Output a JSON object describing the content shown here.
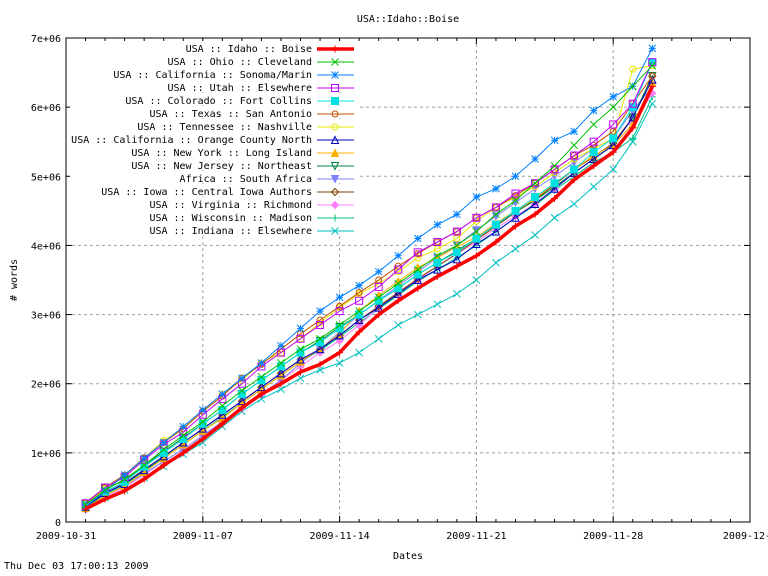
{
  "chart_data": {
    "type": "line",
    "title": "USA::Idaho::Boise",
    "xlabel": "Dates",
    "ylabel": "# words",
    "x_ticks": [
      "2009-10-31",
      "2009-11-07",
      "2009-11-14",
      "2009-11-21",
      "2009-11-28",
      "2009-12-0"
    ],
    "x_tick_days": [
      0,
      7,
      14,
      21,
      28,
      35
    ],
    "xlim_days": [
      0,
      35
    ],
    "y_ticks": [
      "0",
      "1e+06",
      "2e+06",
      "3e+06",
      "4e+06",
      "5e+06",
      "6e+06",
      "7e+06"
    ],
    "y_tick_values": [
      0,
      1000000,
      2000000,
      3000000,
      4000000,
      5000000,
      6000000,
      7000000
    ],
    "ylim": [
      0,
      7000000
    ],
    "grid": true,
    "legend_position": "top-left",
    "x_days": [
      1,
      2,
      3,
      4,
      5,
      6,
      7,
      8,
      9,
      10,
      11,
      12,
      13,
      14,
      15,
      16,
      17,
      18,
      19,
      20,
      21,
      22,
      23,
      24,
      25,
      26,
      27,
      28,
      29,
      30
    ],
    "series": [
      {
        "name": "USA :: Idaho :: Boise",
        "color": "#ff0000",
        "marker": "plus",
        "thick": true,
        "values": [
          0.19,
          0.33,
          0.45,
          0.62,
          0.82,
          1.0,
          1.2,
          1.42,
          1.65,
          1.85,
          2.0,
          2.17,
          2.28,
          2.45,
          2.75,
          3.0,
          3.2,
          3.38,
          3.55,
          3.7,
          3.85,
          4.05,
          4.28,
          4.45,
          4.68,
          4.95,
          5.15,
          5.35,
          5.7,
          6.3
        ]
      },
      {
        "name": "USA :: Ohio :: Cleveland",
        "color": "#00c000",
        "marker": "x",
        "values": [
          0.25,
          0.46,
          0.62,
          0.82,
          1.05,
          1.25,
          1.45,
          1.68,
          1.9,
          2.1,
          2.3,
          2.5,
          2.65,
          2.85,
          3.05,
          3.25,
          3.45,
          3.65,
          3.85,
          4.0,
          4.2,
          4.45,
          4.65,
          4.9,
          5.15,
          5.45,
          5.75,
          6.0,
          6.3,
          6.6
        ]
      },
      {
        "name": "USA :: California :: Sonoma/Marin",
        "color": "#0080ff",
        "marker": "star",
        "values": [
          0.22,
          0.45,
          0.68,
          0.92,
          1.15,
          1.38,
          1.62,
          1.85,
          2.08,
          2.3,
          2.55,
          2.8,
          3.05,
          3.25,
          3.42,
          3.62,
          3.85,
          4.1,
          4.3,
          4.45,
          4.7,
          4.82,
          5.0,
          5.25,
          5.52,
          5.65,
          5.95,
          6.15,
          6.3,
          6.85
        ]
      },
      {
        "name": "USA :: Utah :: Elsewhere",
        "color": "#c000ff",
        "marker": "box",
        "values": [
          0.27,
          0.5,
          0.65,
          0.9,
          1.12,
          1.3,
          1.55,
          1.78,
          2.0,
          2.25,
          2.45,
          2.65,
          2.85,
          3.05,
          3.2,
          3.4,
          3.65,
          3.9,
          4.05,
          4.2,
          4.4,
          4.55,
          4.75,
          4.9,
          5.1,
          5.3,
          5.5,
          5.75,
          6.05,
          6.65
        ]
      },
      {
        "name": "USA :: Colorado :: Fort Collins",
        "color": "#00e0e0",
        "marker": "filled-box",
        "values": [
          0.24,
          0.44,
          0.58,
          0.8,
          1.0,
          1.2,
          1.42,
          1.62,
          1.85,
          2.05,
          2.25,
          2.45,
          2.6,
          2.8,
          3.0,
          3.2,
          3.38,
          3.58,
          3.75,
          3.9,
          4.1,
          4.3,
          4.5,
          4.7,
          4.9,
          5.1,
          5.35,
          5.55,
          6.0,
          6.65
        ]
      },
      {
        "name": "USA :: Texas :: San Antonio",
        "color": "#c05000",
        "marker": "circle",
        "values": [
          0.28,
          0.5,
          0.68,
          0.93,
          1.15,
          1.35,
          1.6,
          1.82,
          2.08,
          2.28,
          2.5,
          2.72,
          2.92,
          3.12,
          3.32,
          3.5,
          3.7,
          3.88,
          4.05,
          4.2,
          4.4,
          4.55,
          4.72,
          4.9,
          5.1,
          5.3,
          5.45,
          5.65,
          6.05,
          6.45
        ]
      },
      {
        "name": "USA :: Tennessee :: Nashville",
        "color": "#e8e800",
        "marker": "circle",
        "values": [
          0.26,
          0.48,
          0.66,
          0.92,
          1.18,
          1.35,
          1.6,
          1.85,
          2.05,
          2.3,
          2.45,
          2.65,
          2.88,
          3.1,
          3.3,
          3.45,
          3.62,
          3.82,
          3.95,
          4.1,
          4.35,
          4.55,
          4.7,
          4.85,
          5.05,
          5.25,
          5.4,
          5.55,
          6.55,
          6.6
        ]
      },
      {
        "name": "USA :: California :: Orange County North",
        "color": "#0000c0",
        "marker": "triangle",
        "values": [
          0.22,
          0.42,
          0.55,
          0.75,
          0.95,
          1.15,
          1.35,
          1.55,
          1.75,
          1.95,
          2.15,
          2.35,
          2.5,
          2.7,
          2.92,
          3.1,
          3.3,
          3.5,
          3.65,
          3.8,
          4.02,
          4.2,
          4.4,
          4.6,
          4.82,
          5.05,
          5.25,
          5.45,
          5.85,
          6.4
        ]
      },
      {
        "name": "USA :: New York :: Long Island",
        "color": "#ffb000",
        "marker": "filled-triangle",
        "values": [
          0.2,
          0.38,
          0.52,
          0.72,
          0.92,
          1.12,
          1.32,
          1.5,
          1.72,
          1.92,
          2.12,
          2.32,
          2.5,
          2.72,
          3.05,
          3.28,
          3.48,
          3.68,
          3.82,
          3.98,
          4.12,
          4.32,
          4.5,
          4.68,
          4.9,
          5.1,
          5.3,
          5.45,
          5.75,
          6.35
        ]
      },
      {
        "name": "USA :: New Jersey :: Northeast",
        "color": "#008040",
        "marker": "inverted-triangle",
        "values": [
          0.26,
          0.48,
          0.6,
          0.82,
          1.02,
          1.22,
          1.42,
          1.62,
          1.85,
          2.05,
          2.25,
          2.45,
          2.62,
          2.82,
          3.0,
          3.2,
          3.38,
          3.58,
          3.75,
          3.92,
          4.1,
          4.3,
          4.48,
          4.65,
          4.85,
          5.05,
          5.25,
          5.45,
          5.85,
          6.45
        ]
      },
      {
        "name": "Africa :: South Africa",
        "color": "#8080ff",
        "marker": "filled-inverted-triangle",
        "values": [
          0.18,
          0.38,
          0.52,
          0.7,
          0.88,
          1.05,
          1.25,
          1.45,
          1.65,
          1.85,
          2.05,
          2.3,
          2.5,
          2.75,
          3.0,
          3.2,
          3.42,
          3.62,
          3.82,
          4.0,
          4.22,
          4.42,
          4.62,
          4.82,
          5.0,
          5.2,
          5.4,
          5.55,
          5.95,
          6.3
        ]
      },
      {
        "name": "USA :: Iowa :: Central Iowa Authors",
        "color": "#804000",
        "marker": "diamond",
        "values": [
          0.23,
          0.42,
          0.56,
          0.76,
          0.95,
          1.15,
          1.35,
          1.55,
          1.75,
          1.95,
          2.15,
          2.35,
          2.5,
          2.7,
          2.92,
          3.12,
          3.32,
          3.52,
          3.7,
          3.88,
          4.08,
          4.28,
          4.48,
          4.66,
          4.88,
          5.1,
          5.28,
          5.48,
          5.85,
          6.45
        ]
      },
      {
        "name": "USA :: Virginia :: Richmond",
        "color": "#ff80ff",
        "marker": "filled-diamond",
        "values": [
          0.18,
          0.36,
          0.5,
          0.68,
          0.88,
          1.05,
          1.25,
          1.45,
          1.65,
          1.85,
          2.05,
          2.25,
          2.45,
          2.62,
          2.85,
          3.1,
          3.3,
          3.5,
          3.7,
          3.88,
          4.05,
          4.25,
          4.42,
          4.6,
          4.82,
          5.05,
          5.25,
          5.45,
          5.75,
          6.2
        ]
      },
      {
        "name": "USA :: Wisconsin :: Madison",
        "color": "#00c080",
        "marker": "plus",
        "values": [
          0.21,
          0.4,
          0.54,
          0.74,
          0.93,
          1.12,
          1.32,
          1.52,
          1.72,
          1.92,
          2.12,
          2.32,
          2.48,
          2.68,
          2.88,
          3.08,
          3.28,
          3.48,
          3.65,
          3.82,
          4.0,
          4.2,
          4.4,
          4.58,
          4.8,
          5.0,
          5.2,
          5.35,
          5.55,
          6.15
        ]
      },
      {
        "name": "USA :: Indiana :: Elsewhere",
        "color": "#00c0c0",
        "marker": "x",
        "values": [
          0.2,
          0.35,
          0.46,
          0.64,
          0.8,
          0.98,
          1.15,
          1.38,
          1.6,
          1.78,
          1.92,
          2.08,
          2.2,
          2.3,
          2.45,
          2.65,
          2.85,
          3.0,
          3.15,
          3.3,
          3.5,
          3.75,
          3.95,
          4.15,
          4.4,
          4.6,
          4.85,
          5.1,
          5.5,
          6.05
        ]
      }
    ],
    "value_unit_multiplier": 1000000
  },
  "footer": {
    "timestamp": "Thu Dec 03 17:00:13 2009"
  }
}
